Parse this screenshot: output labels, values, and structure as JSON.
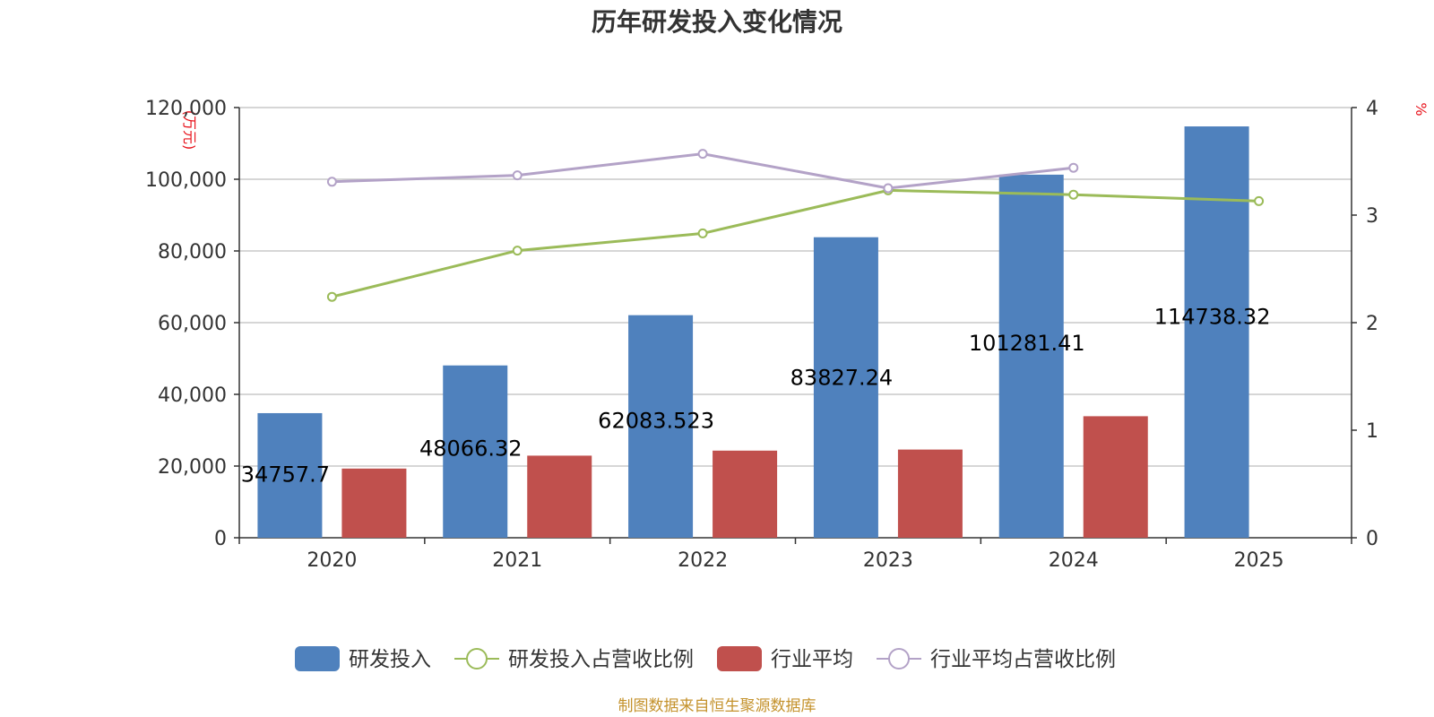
{
  "chart_data": {
    "type": "bar",
    "title": "历年研发投入变化情况",
    "categories": [
      "2020",
      "2021",
      "2022",
      "2023",
      "2024",
      "2025"
    ],
    "y_left": {
      "unit_label": "(万元)",
      "ylim": [
        0,
        120000
      ],
      "ticks": [
        "0",
        "20,000",
        "40,000",
        "60,000",
        "80,000",
        "100,000",
        "120,000"
      ]
    },
    "y_right": {
      "unit_label": "%",
      "ylim": [
        0,
        4
      ],
      "ticks": [
        "0",
        "1",
        "2",
        "3",
        "4"
      ]
    },
    "series": [
      {
        "name": "研发投入",
        "type": "bar",
        "axis": "left",
        "color": "#4f81bd",
        "values": [
          34757.7,
          48066.32,
          62083.523,
          83827.24,
          101281.41,
          114738.32
        ],
        "labels": [
          "34757.7",
          "48066.32",
          "62083.523",
          "83827.24",
          "101281.41",
          "114738.32"
        ]
      },
      {
        "name": "研发投入占营收比例",
        "type": "line",
        "axis": "right",
        "color": "#9bbb59",
        "values": [
          2.24,
          2.67,
          2.83,
          3.23,
          3.19,
          3.13
        ]
      },
      {
        "name": "行业平均",
        "type": "bar",
        "axis": "left",
        "color": "#c0504d",
        "values": [
          19300,
          22900,
          24300,
          24600,
          33900,
          null
        ]
      },
      {
        "name": "行业平均占营收比例",
        "type": "line",
        "axis": "right",
        "color": "#b3a2c7",
        "values": [
          3.31,
          3.37,
          3.57,
          3.25,
          3.44,
          null
        ]
      }
    ],
    "grid": true,
    "legend_position": "bottom",
    "source_note": "制图数据来自恒生聚源数据库"
  }
}
